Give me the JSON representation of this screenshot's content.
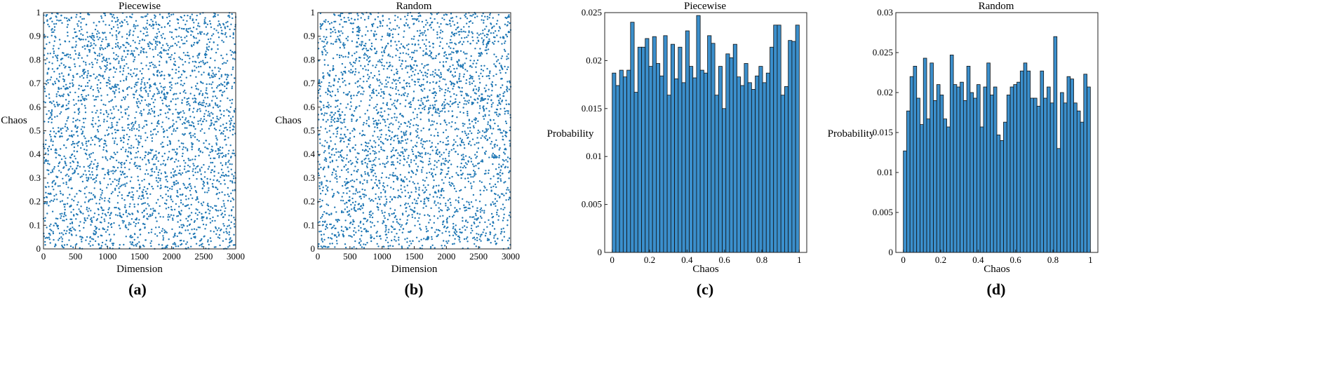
{
  "chart_data": [
    {
      "type": "scatter",
      "title": "Piecewise",
      "xlabel": "Dimension",
      "ylabel": "Chaos",
      "xlim": [
        0,
        3000
      ],
      "ylim": [
        0,
        1
      ],
      "xticks": [
        0,
        500,
        1000,
        1500,
        2000,
        2500,
        3000
      ],
      "yticks": [
        0,
        0.1,
        0.2,
        0.3,
        0.4,
        0.5,
        0.6,
        0.7,
        0.8,
        0.9,
        1
      ],
      "xticklabels": [
        "0",
        "500",
        "1000",
        "1500",
        "2000",
        "2500",
        "3000"
      ],
      "yticklabels": [
        "0",
        "0.1",
        "0.2",
        "0.3",
        "0.4",
        "0.5",
        "0.6",
        "0.7",
        "0.8",
        "0.9",
        "1"
      ],
      "n_points": 3000,
      "distribution": "uniform over [0,1] per dimension index",
      "marker_color": "#1f77b4",
      "panel_label": "(a)"
    },
    {
      "type": "scatter",
      "title": "Random",
      "xlabel": "Dimension",
      "ylabel": "Chaos",
      "xlim": [
        0,
        3000
      ],
      "ylim": [
        0,
        1
      ],
      "xticks": [
        0,
        500,
        1000,
        1500,
        2000,
        2500,
        3000
      ],
      "yticks": [
        0,
        0.1,
        0.2,
        0.3,
        0.4,
        0.5,
        0.6,
        0.7,
        0.8,
        0.9,
        1
      ],
      "xticklabels": [
        "0",
        "500",
        "1000",
        "1500",
        "2000",
        "2500",
        "3000"
      ],
      "yticklabels": [
        "0",
        "0.1",
        "0.2",
        "0.3",
        "0.4",
        "0.5",
        "0.6",
        "0.7",
        "0.8",
        "0.9",
        "1"
      ],
      "n_points": 3000,
      "distribution": "uniform over [0,1] per dimension index",
      "marker_color": "#1f77b4",
      "panel_label": "(b)"
    },
    {
      "type": "bar",
      "title": "Piecewise",
      "xlabel": "Chaos",
      "ylabel": "Probability",
      "xlim": [
        -0.04,
        1.04
      ],
      "ylim": [
        0,
        0.025
      ],
      "xticks": [
        0,
        0.2,
        0.4,
        0.6,
        0.8,
        1
      ],
      "yticks": [
        0,
        0.005,
        0.01,
        0.015,
        0.02,
        0.025
      ],
      "xticklabels": [
        "0",
        "0.2",
        "0.4",
        "0.6",
        "0.8",
        "1"
      ],
      "yticklabels": [
        "0",
        "0.005",
        "0.01",
        "0.015",
        "0.02",
        "0.025"
      ],
      "bin_range": [
        0,
        1
      ],
      "values": [
        0.0187,
        0.0174,
        0.019,
        0.0183,
        0.019,
        0.024,
        0.0167,
        0.0214,
        0.0214,
        0.0223,
        0.0194,
        0.0225,
        0.0197,
        0.0184,
        0.0226,
        0.0164,
        0.0217,
        0.0181,
        0.0214,
        0.0177,
        0.0231,
        0.0194,
        0.0182,
        0.0247,
        0.019,
        0.0187,
        0.0226,
        0.0218,
        0.0164,
        0.0194,
        0.015,
        0.0207,
        0.0203,
        0.0217,
        0.0183,
        0.0174,
        0.0197,
        0.0177,
        0.017,
        0.0184,
        0.0194,
        0.0177,
        0.0187,
        0.0214,
        0.0237,
        0.0237,
        0.0164,
        0.0173,
        0.0221,
        0.022,
        0.0237
      ],
      "bar_color": "#3b8fcc",
      "panel_label": "(c)"
    },
    {
      "type": "bar",
      "title": "Random",
      "xlabel": "Chaos",
      "ylabel": "Probability",
      "xlim": [
        -0.04,
        1.04
      ],
      "ylim": [
        0,
        0.03
      ],
      "xticks": [
        0,
        0.2,
        0.4,
        0.6,
        0.8,
        1
      ],
      "yticks": [
        0,
        0.005,
        0.01,
        0.015,
        0.02,
        0.025,
        0.03
      ],
      "xticklabels": [
        "0",
        "0.2",
        "0.4",
        "0.6",
        "0.8",
        "1"
      ],
      "yticklabels": [
        "0",
        "0.005",
        "0.01",
        "0.015",
        "0.02",
        "0.025",
        "0.03"
      ],
      "bin_range": [
        0,
        1
      ],
      "values": [
        0.0127,
        0.0177,
        0.022,
        0.0233,
        0.0193,
        0.016,
        0.0243,
        0.0167,
        0.0237,
        0.019,
        0.021,
        0.0197,
        0.0167,
        0.0157,
        0.0247,
        0.021,
        0.0207,
        0.0213,
        0.019,
        0.0233,
        0.02,
        0.0193,
        0.021,
        0.0157,
        0.0207,
        0.0237,
        0.0197,
        0.0207,
        0.0147,
        0.014,
        0.0163,
        0.0197,
        0.0207,
        0.021,
        0.0213,
        0.0227,
        0.0237,
        0.0227,
        0.0193,
        0.0193,
        0.0183,
        0.0227,
        0.0193,
        0.0207,
        0.0187,
        0.027,
        0.013,
        0.02,
        0.0187,
        0.022,
        0.0217,
        0.0187,
        0.0177,
        0.0163,
        0.0223,
        0.0207
      ],
      "bar_color": "#3b8fcc",
      "panel_label": "(d)"
    }
  ]
}
